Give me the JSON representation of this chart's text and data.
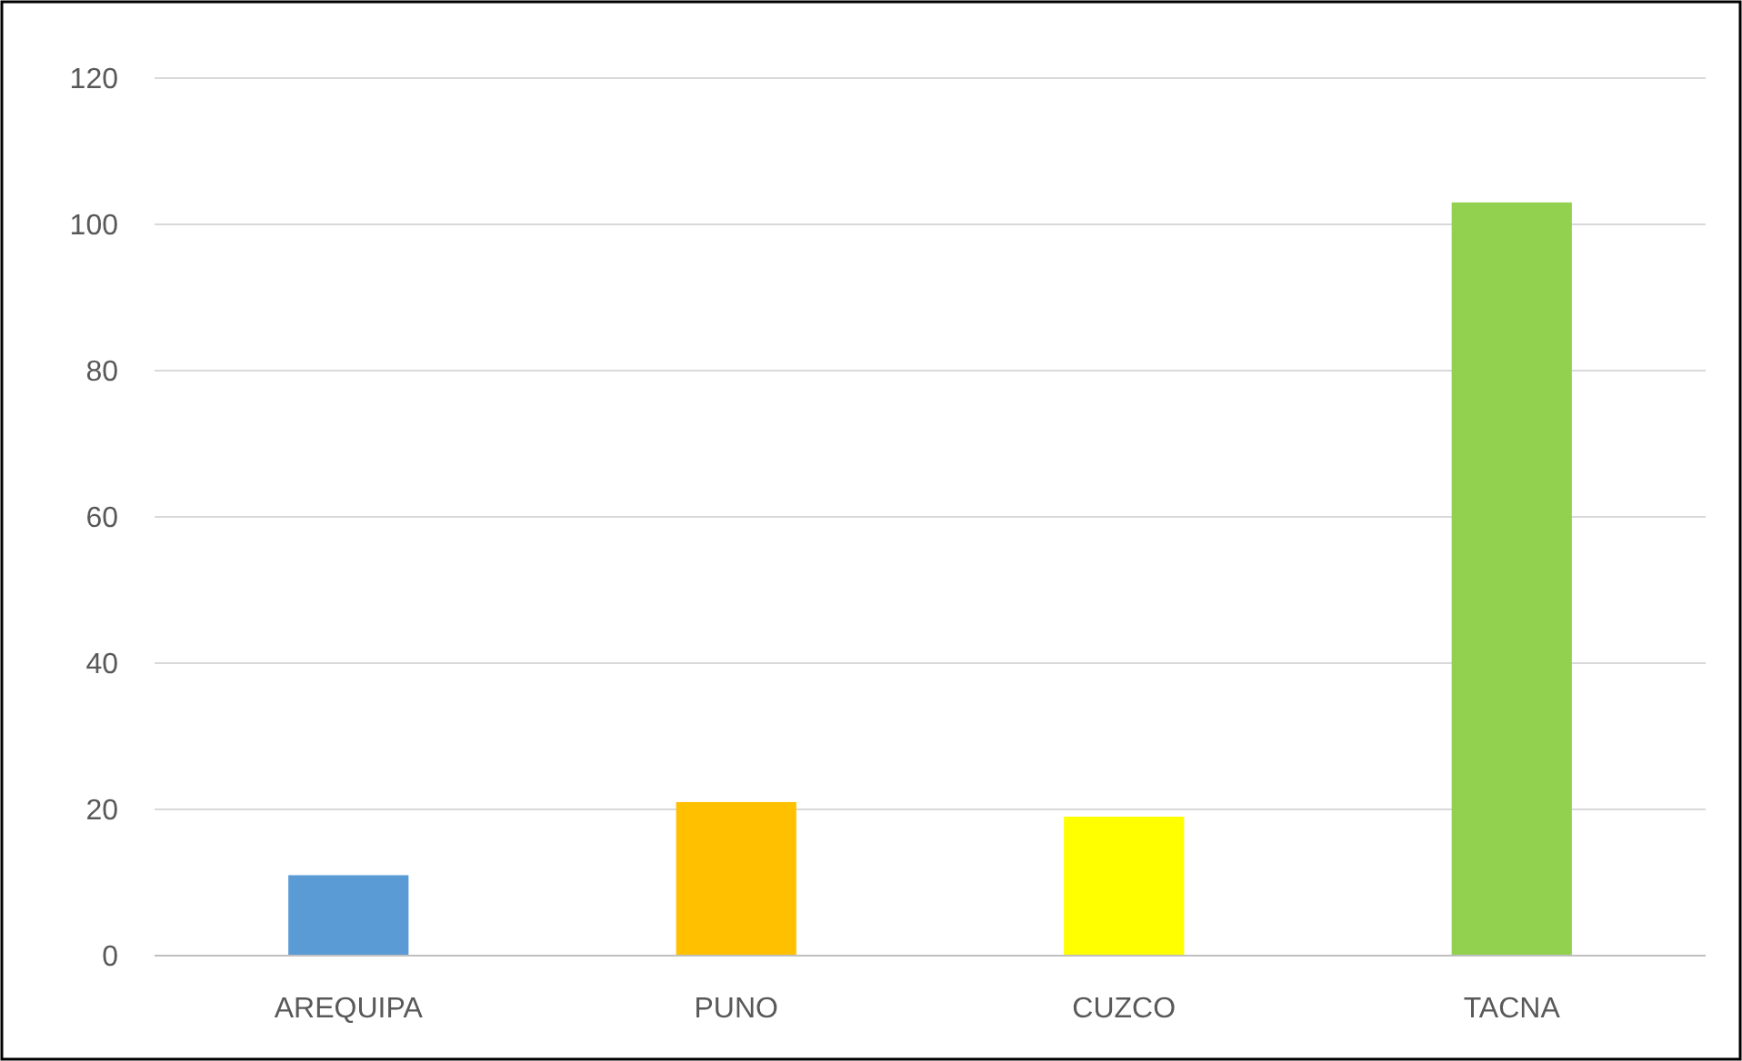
{
  "chart_data": {
    "type": "bar",
    "categories": [
      "AREQUIPA",
      "PUNO",
      "CUZCO",
      "TACNA"
    ],
    "values": [
      11,
      21,
      19,
      103
    ],
    "colors": [
      "#5b9bd5",
      "#ffc000",
      "#ffff00",
      "#92d050"
    ],
    "ylim": [
      0,
      120
    ],
    "yticks": [
      0,
      20,
      40,
      60,
      80,
      100,
      120
    ],
    "grid": "y"
  }
}
